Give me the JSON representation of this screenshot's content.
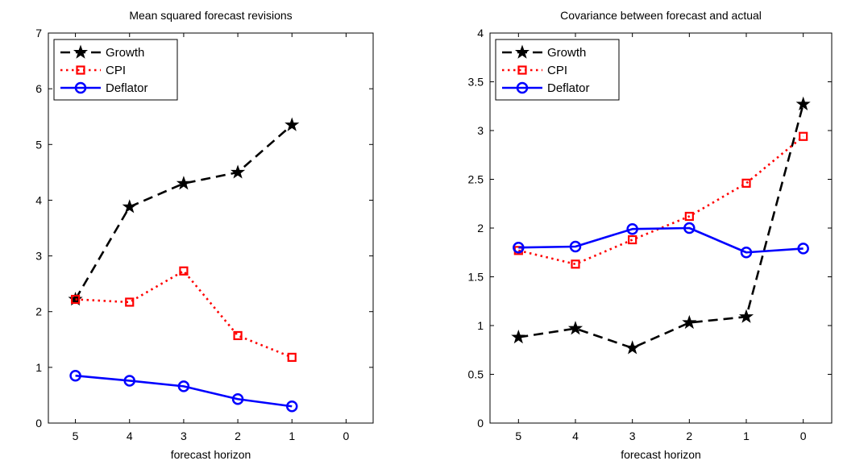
{
  "chart_data": [
    {
      "type": "line",
      "title": "Mean squared forecast revisions",
      "xlabel": "forecast horizon",
      "ylabel": "",
      "x": [
        5,
        4,
        3,
        2,
        1
      ],
      "xticks": [
        5,
        4,
        3,
        2,
        1,
        0
      ],
      "x_reversed": true,
      "xlim": [
        -0.5,
        5.5
      ],
      "ylim": [
        0,
        7
      ],
      "yticks": [
        0,
        1,
        2,
        3,
        4,
        5,
        6,
        7
      ],
      "grid": false,
      "legend_position": "top-left",
      "series": [
        {
          "name": "Growth",
          "values": [
            2.22,
            3.88,
            4.3,
            4.5,
            5.35
          ],
          "color": "#000000",
          "line": "dashed",
          "marker": "star"
        },
        {
          "name": "CPI",
          "values": [
            2.22,
            2.17,
            2.73,
            1.57,
            1.18
          ],
          "color": "#ff0000",
          "line": "dotted",
          "marker": "square"
        },
        {
          "name": "Deflator",
          "values": [
            0.85,
            0.76,
            0.66,
            0.43,
            0.3
          ],
          "color": "#0000ff",
          "line": "solid",
          "marker": "circle"
        }
      ]
    },
    {
      "type": "line",
      "title": "Covariance between forecast and actual",
      "xlabel": "forecast horizon",
      "ylabel": "",
      "x": [
        5,
        4,
        3,
        2,
        1,
        0
      ],
      "xticks": [
        5,
        4,
        3,
        2,
        1,
        0
      ],
      "x_reversed": true,
      "xlim": [
        -0.5,
        5.5
      ],
      "ylim": [
        0,
        4
      ],
      "yticks": [
        0,
        0.5,
        1,
        1.5,
        2,
        2.5,
        3,
        3.5,
        4
      ],
      "grid": false,
      "legend_position": "top-left",
      "series": [
        {
          "name": "Growth",
          "values": [
            0.88,
            0.97,
            0.77,
            1.03,
            1.09,
            3.27
          ],
          "color": "#000000",
          "line": "dashed",
          "marker": "star"
        },
        {
          "name": "CPI",
          "values": [
            1.77,
            1.63,
            1.88,
            2.12,
            2.46,
            2.94
          ],
          "color": "#ff0000",
          "line": "dotted",
          "marker": "square"
        },
        {
          "name": "Deflator",
          "values": [
            1.8,
            1.81,
            1.99,
            2.0,
            1.75,
            1.79
          ],
          "color": "#0000ff",
          "line": "solid",
          "marker": "circle"
        }
      ]
    }
  ]
}
